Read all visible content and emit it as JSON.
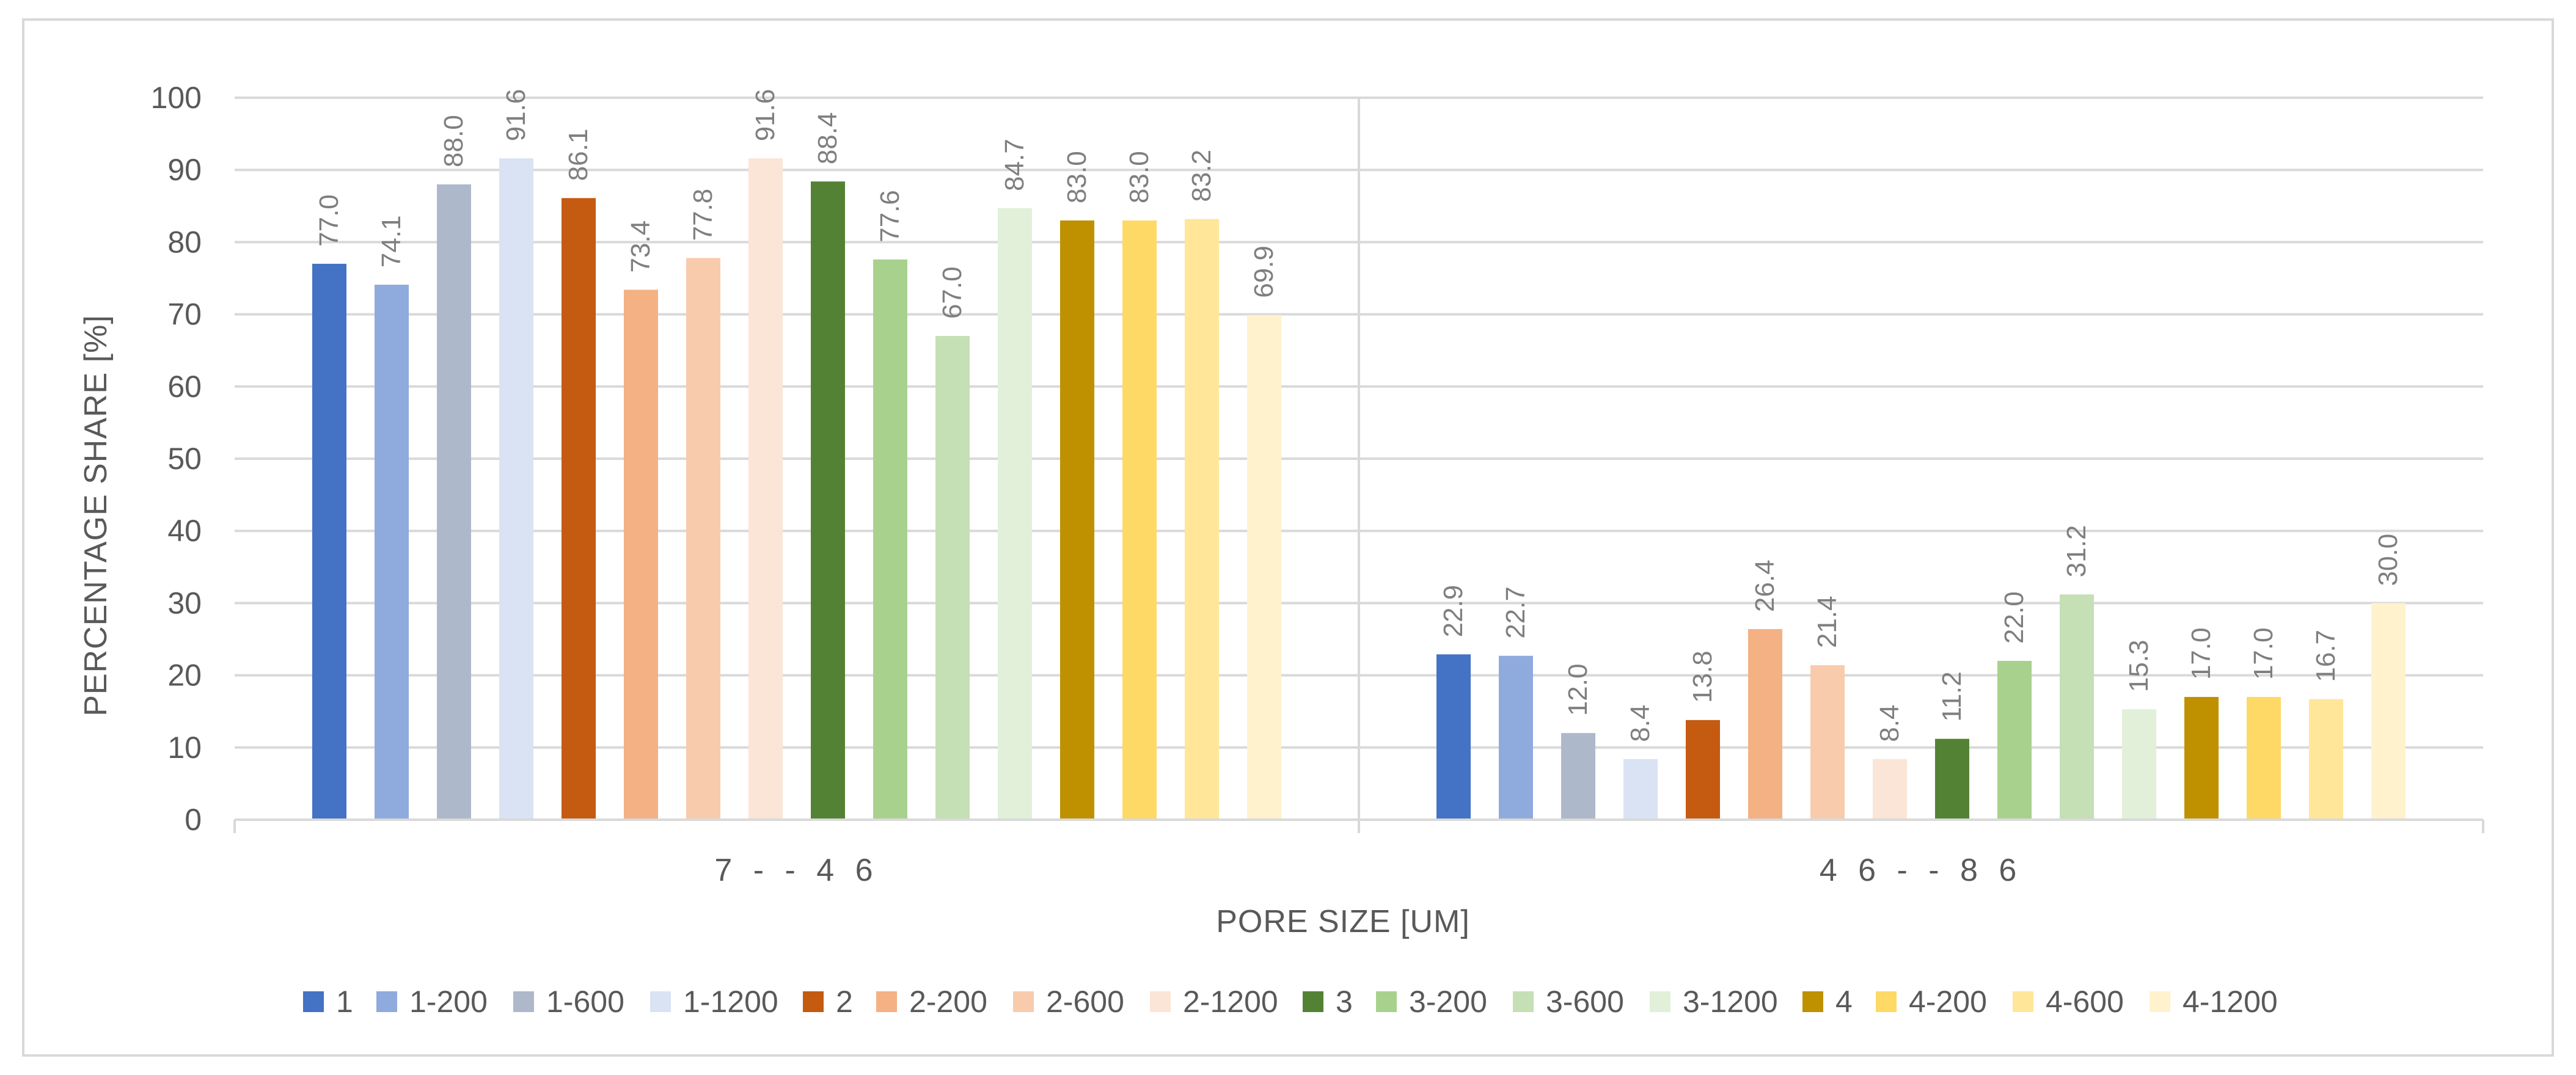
{
  "chart_data": {
    "type": "bar",
    "title": "",
    "xlabel": "PORE SIZE [UM]",
    "ylabel": "PERCENTAGE SHARE [%]",
    "ylim": [
      0,
      100
    ],
    "yticks": [
      "0",
      "10",
      "20",
      "30",
      "40",
      "50",
      "60",
      "70",
      "80",
      "90",
      "100"
    ],
    "grid": true,
    "legend_position": "bottom",
    "categories": [
      "7 - - 4 6",
      "4 6 - - 8 6"
    ],
    "series": [
      {
        "name": "1",
        "color": "#4472c4",
        "values": [
          77.0,
          22.9
        ],
        "labels": [
          "77.0",
          "22.9"
        ]
      },
      {
        "name": "1-200",
        "color": "#8faadc",
        "values": [
          74.1,
          22.7
        ],
        "labels": [
          "74.1",
          "22.7"
        ]
      },
      {
        "name": "1-600",
        "color": "#adb9ca",
        "values": [
          88.0,
          12.0
        ],
        "labels": [
          "88.0",
          "12.0"
        ]
      },
      {
        "name": "1-1200",
        "color": "#dae3f3",
        "values": [
          91.6,
          8.4
        ],
        "labels": [
          "91.6",
          "8.4"
        ]
      },
      {
        "name": "2",
        "color": "#c55a11",
        "values": [
          86.1,
          13.8
        ],
        "labels": [
          "86.1",
          "13.8"
        ]
      },
      {
        "name": "2-200",
        "color": "#f4b183",
        "values": [
          73.4,
          26.4
        ],
        "labels": [
          "73.4",
          "26.4"
        ]
      },
      {
        "name": "2-600",
        "color": "#f8cbad",
        "values": [
          77.8,
          21.4
        ],
        "labels": [
          "77.8",
          "21.4"
        ]
      },
      {
        "name": "2-1200",
        "color": "#fbe5d6",
        "values": [
          91.6,
          8.4
        ],
        "labels": [
          "91.6",
          "8.4"
        ]
      },
      {
        "name": "3",
        "color": "#548235",
        "values": [
          88.4,
          11.2
        ],
        "labels": [
          "88.4",
          "11.2"
        ]
      },
      {
        "name": "3-200",
        "color": "#a9d18e",
        "values": [
          77.6,
          22.0
        ],
        "labels": [
          "77.6",
          "22.0"
        ]
      },
      {
        "name": "3-600",
        "color": "#c5e0b4",
        "values": [
          67.0,
          31.2
        ],
        "labels": [
          "67.0",
          "31.2"
        ]
      },
      {
        "name": "3-1200",
        "color": "#e2f0d9",
        "values": [
          84.7,
          15.3
        ],
        "labels": [
          "84.7",
          "15.3"
        ]
      },
      {
        "name": "4",
        "color": "#bf9000",
        "values": [
          83.0,
          17.0
        ],
        "labels": [
          "83.0",
          "17.0"
        ]
      },
      {
        "name": "4-200",
        "color": "#ffd966",
        "values": [
          83.0,
          17.0
        ],
        "labels": [
          "83.0",
          "17.0"
        ]
      },
      {
        "name": "4-600",
        "color": "#ffe699",
        "values": [
          83.2,
          16.7
        ],
        "labels": [
          "83.2",
          "16.7"
        ]
      },
      {
        "name": "4-1200",
        "color": "#fff2cc",
        "values": [
          69.9,
          30.0
        ],
        "labels": [
          "69.9",
          "30.0"
        ]
      }
    ]
  }
}
